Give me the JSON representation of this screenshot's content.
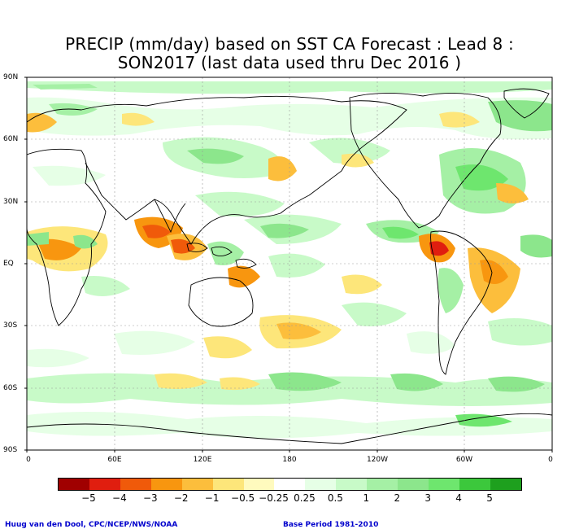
{
  "title": {
    "line1": "PRECIP (mm/day) based on SST CA Forecast : Lead 8 :",
    "line2": "SON2017 (last data used thru Dec 2016 )"
  },
  "y_ticks": [
    "90N",
    "60N",
    "30N",
    "EQ",
    "30S",
    "60S",
    "90S"
  ],
  "x_ticks": [
    "0",
    "60E",
    "120E",
    "180",
    "120W",
    "60W",
    "0"
  ],
  "colorbar": {
    "colors": [
      "#a00000",
      "#e01e0f",
      "#f05a0a",
      "#f8960f",
      "#fcbe3c",
      "#fde67a",
      "#fffabe",
      "#ffffff",
      "#e6ffe6",
      "#c8fac8",
      "#a5f0a5",
      "#8ce68c",
      "#6ee66e",
      "#3cc83c",
      "#1ea01e"
    ],
    "labels": [
      "−5",
      "−4",
      "−3",
      "−2",
      "−1",
      "−0.5",
      "−0.25",
      "0.25",
      "0.5",
      "1",
      "2",
      "3",
      "4",
      "5"
    ]
  },
  "credits": {
    "left": "Huug van den Dool, CPC/NCEP/NWS/NOAA",
    "right": "Base Period 1981-2010"
  }
}
